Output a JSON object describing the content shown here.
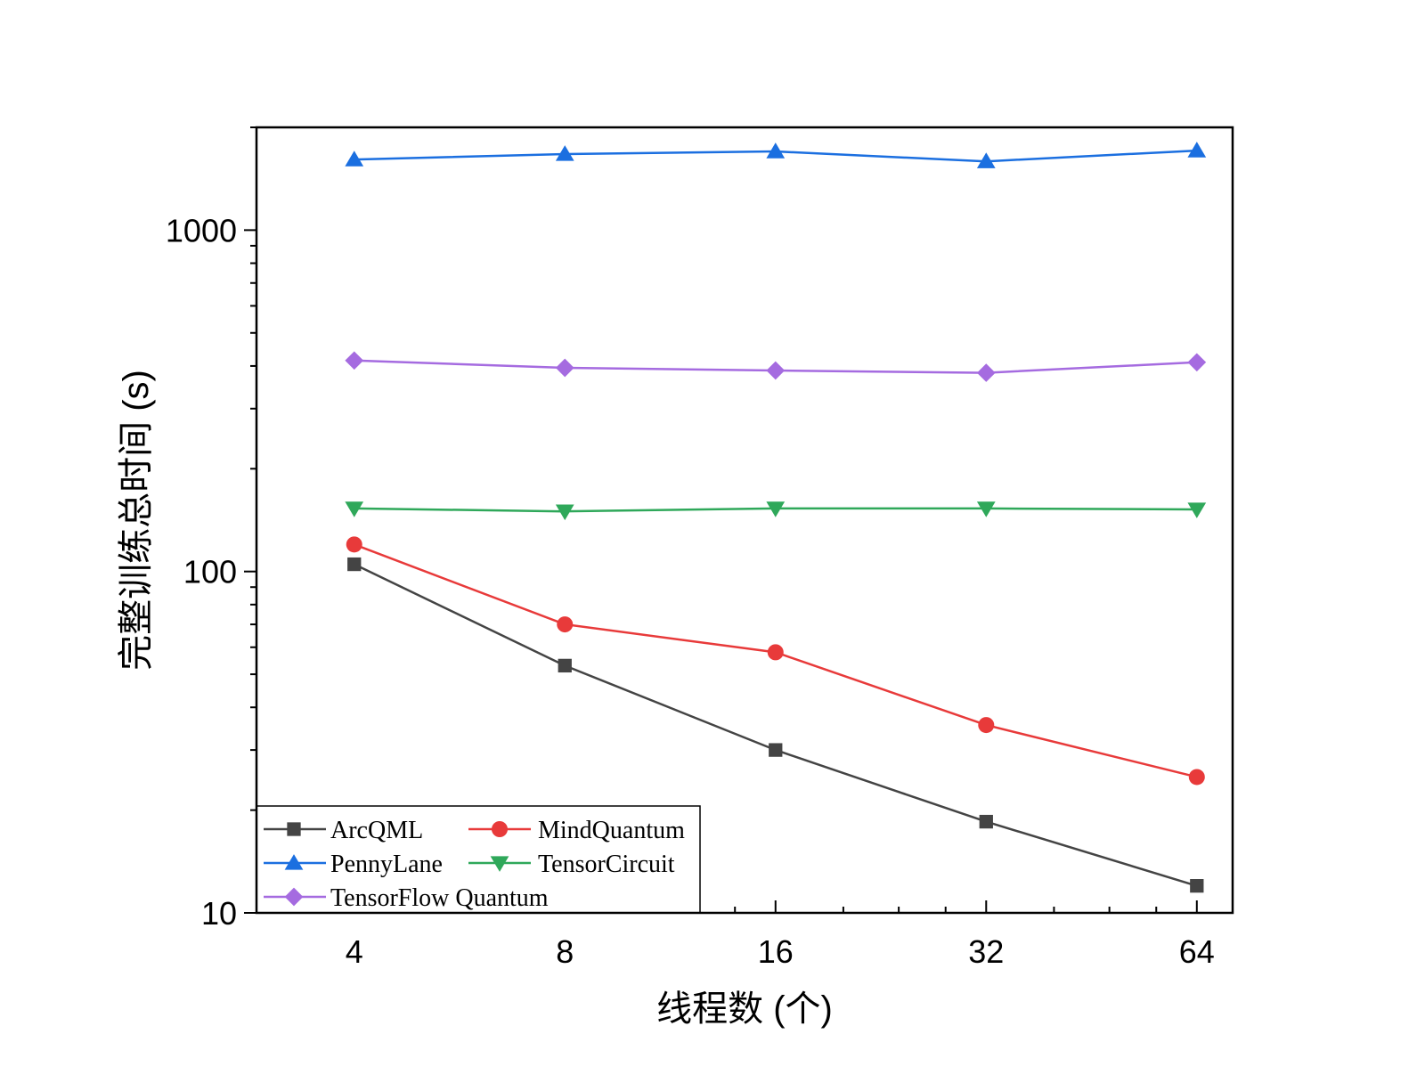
{
  "chart_data": {
    "type": "line",
    "xlabel": "线程数 (个)",
    "ylabel": "完整训练总时间 (s)",
    "x_scale": "log2",
    "y_scale": "log10",
    "x": [
      4,
      8,
      16,
      32,
      64
    ],
    "x_tick_labels": [
      "4",
      "8",
      "16",
      "32",
      "64"
    ],
    "xlim": [
      2.9,
      72
    ],
    "ylim": [
      10,
      2000
    ],
    "y_tick_values": [
      10,
      100,
      1000
    ],
    "y_tick_labels": [
      "10",
      "100",
      "1000"
    ],
    "grid": false,
    "legend_position": "bottom-left",
    "series": [
      {
        "name": "ArcQML",
        "values": [
          105,
          53,
          30,
          18.5,
          12
        ],
        "color": "#444444",
        "marker": "square"
      },
      {
        "name": "MindQuantum",
        "values": [
          120,
          70,
          58,
          35.5,
          25
        ],
        "color": "#e83a3a",
        "marker": "circle"
      },
      {
        "name": "PennyLane",
        "values": [
          1610,
          1670,
          1700,
          1590,
          1710
        ],
        "color": "#1b6fe0",
        "marker": "triangle-up"
      },
      {
        "name": "TensorCircuit",
        "values": [
          153,
          150,
          153,
          153,
          152
        ],
        "color": "#2fa85a",
        "marker": "triangle-down"
      },
      {
        "name": "TensorFlow Quantum",
        "values": [
          415,
          395,
          388,
          382,
          410
        ],
        "color": "#a56be0",
        "marker": "diamond"
      }
    ]
  }
}
